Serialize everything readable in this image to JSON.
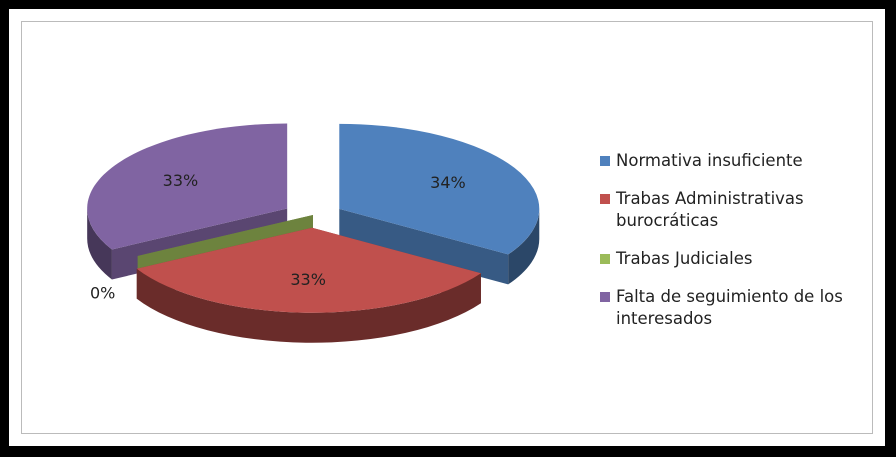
{
  "chart_data": {
    "type": "pie3d",
    "categories": [
      "Normativa insuficiente",
      "Trabas Administrativas burocráticas",
      "Trabas Judiciales",
      "Falta de seguimiento de los interesados"
    ],
    "values": [
      34,
      33,
      0,
      33
    ],
    "value_labels": [
      "34%",
      "33%",
      "0%",
      "33%"
    ],
    "colors": [
      "#4f81bd",
      "#c0504d",
      "#9bbb59",
      "#8064a2"
    ],
    "legend": "right"
  }
}
